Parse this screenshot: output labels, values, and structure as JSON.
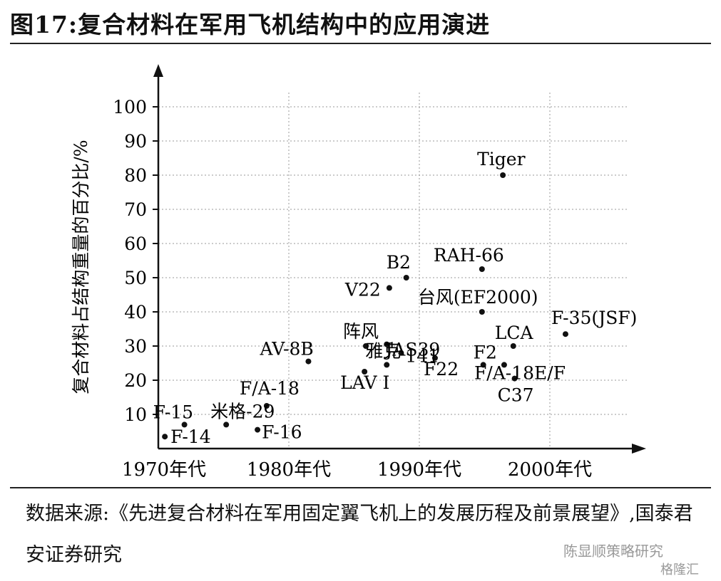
{
  "figure_title": "图17:复合材料在军用飞机结构中的应用演进",
  "source_text": "数据来源:《先进复合材料在军用固定翼飞机上的发展历程及前景展望》,国泰君安证券研究",
  "watermark": {
    "name": "陈显顺策略研究",
    "platform": "格隆汇"
  },
  "chart_data": {
    "type": "scatter",
    "title": "",
    "xlabel": "",
    "ylabel": "复合材料占结构重量的百分比/%",
    "x_ticks": [
      "1970年代",
      "1980年代",
      "1990年代",
      "2000年代"
    ],
    "y_ticks": [
      10,
      20,
      30,
      40,
      50,
      60,
      70,
      80,
      90,
      100
    ],
    "xlim": [
      1970,
      2008
    ],
    "ylim": [
      0,
      100
    ],
    "grid": true,
    "points": [
      {
        "label": "F-14",
        "x": 1970.5,
        "y": 3.5
      },
      {
        "label": "F-15",
        "x": 1972.0,
        "y": 7
      },
      {
        "label": "米格-29",
        "x": 1975.2,
        "y": 7
      },
      {
        "label": "F/A-18",
        "x": 1978.3,
        "y": 12.5
      },
      {
        "label": "F-16",
        "x": 1977.6,
        "y": 5.5
      },
      {
        "label": "AV-8B",
        "x": 1981.5,
        "y": 25.5
      },
      {
        "label": "阵风",
        "x": 1985.9,
        "y": 30
      },
      {
        "label": "雅克",
        "x": 1987.5,
        "y": 30.5
      },
      {
        "label": "141",
        "x": 1988.6,
        "y": 28
      },
      {
        "label": "LAV I",
        "x": 1985.8,
        "y": 22.5
      },
      {
        "label": "JAS39",
        "x": 1987.5,
        "y": 24.5
      },
      {
        "label": "V22",
        "x": 1987.7,
        "y": 47
      },
      {
        "label": "B2",
        "x": 1989.0,
        "y": 50
      },
      {
        "label": "F22",
        "x": 1991.2,
        "y": 26.5
      },
      {
        "label": "RAH-66",
        "x": 1994.8,
        "y": 52.5
      },
      {
        "label": "台风(EF2000)",
        "x": 1994.8,
        "y": 40
      },
      {
        "label": "Tiger",
        "x": 1996.4,
        "y": 80
      },
      {
        "label": "F2",
        "x": 1994.9,
        "y": 24.5
      },
      {
        "label": "F/A-18E/F",
        "x": 1996.5,
        "y": 24.5
      },
      {
        "label": "C37",
        "x": 1997.3,
        "y": 20.5
      },
      {
        "label": "LCA",
        "x": 1997.2,
        "y": 30
      },
      {
        "label": "F-35(JSF)",
        "x": 2001.2,
        "y": 33.5
      }
    ]
  }
}
